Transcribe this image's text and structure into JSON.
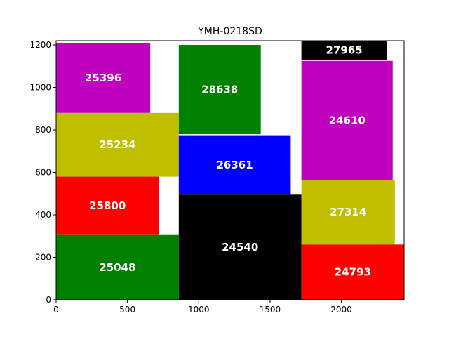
{
  "chart_data": {
    "type": "rect-layout",
    "title": "YMH-0218SD",
    "xlim": [
      0,
      2440
    ],
    "ylim": [
      0,
      1220
    ],
    "xticks": [
      0,
      500,
      1000,
      1500,
      2000
    ],
    "yticks": [
      0,
      200,
      400,
      600,
      800,
      1000,
      1200
    ],
    "grid": false,
    "rects": [
      {
        "label": "25396",
        "x": 0,
        "y": 880,
        "w": 660,
        "h": 330,
        "color": "#bf00bf"
      },
      {
        "label": "25234",
        "x": 0,
        "y": 580,
        "w": 860,
        "h": 300,
        "color": "#bfbf00"
      },
      {
        "label": "25800",
        "x": 0,
        "y": 305,
        "w": 720,
        "h": 275,
        "color": "#ff0000"
      },
      {
        "label": "25048",
        "x": 0,
        "y": 0,
        "w": 860,
        "h": 305,
        "color": "#008000"
      },
      {
        "label": "28638",
        "x": 860,
        "y": 780,
        "w": 575,
        "h": 420,
        "color": "#008000"
      },
      {
        "label": "26361",
        "x": 860,
        "y": 495,
        "w": 785,
        "h": 280,
        "color": "#0000ff"
      },
      {
        "label": "24540",
        "x": 860,
        "y": 0,
        "w": 860,
        "h": 495,
        "color": "#000000"
      },
      {
        "label": "27965",
        "x": 1720,
        "y": 1130,
        "w": 600,
        "h": 90,
        "color": "#000000"
      },
      {
        "label": "24610",
        "x": 1720,
        "y": 565,
        "w": 640,
        "h": 560,
        "color": "#bf00bf"
      },
      {
        "label": "27314",
        "x": 1720,
        "y": 260,
        "w": 655,
        "h": 305,
        "color": "#bfbf00"
      },
      {
        "label": "24793",
        "x": 1720,
        "y": 0,
        "w": 720,
        "h": 260,
        "color": "#ff0000"
      }
    ]
  }
}
